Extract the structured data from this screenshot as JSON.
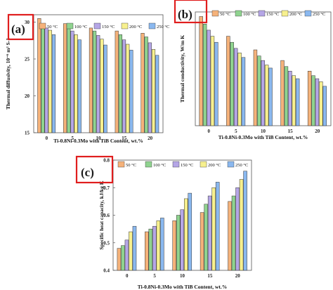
{
  "colors": {
    "series": [
      "#f5b27a",
      "#8fd38f",
      "#b5a6e6",
      "#f7f08e",
      "#8ab8ef"
    ],
    "panel_box": "#e01e1e",
    "bar_stroke": "#333333",
    "frame": "#555555"
  },
  "chart_data": [
    {
      "type": "bar",
      "label": "(a)",
      "categories": [
        "0",
        "5",
        "10",
        "15",
        "20"
      ],
      "series": [
        {
          "name": "50 °C",
          "values": [
            30.5,
            29.8,
            29.2,
            28.8,
            28.5
          ]
        },
        {
          "name": "100 °C",
          "values": [
            29.7,
            29.4,
            28.8,
            28.3,
            28.0
          ]
        },
        {
          "name": "150 °C",
          "values": [
            29.2,
            28.8,
            28.2,
            27.6,
            27.2
          ]
        },
        {
          "name": "200 °C",
          "values": [
            28.9,
            28.3,
            27.7,
            27.0,
            26.3
          ]
        },
        {
          "name": "250 °C",
          "values": [
            28.3,
            27.6,
            26.9,
            26.2,
            25.5
          ]
        }
      ],
      "xlabel": "Ti-0.8Ni-0.3Mo with TiB Content, wt.%",
      "ylabel": "Thermal diffusivity, 10⁻⁶ m² S-1",
      "ylim": [
        15,
        31
      ],
      "yticks": [
        "15",
        "20",
        "25",
        "30"
      ],
      "legend": "top-right",
      "grid": false
    },
    {
      "type": "bar",
      "label": "(b)",
      "categories": [
        "0",
        "5",
        "10",
        "15",
        "20"
      ],
      "series": [
        {
          "name": "50 °C",
          "values": [
            14.2,
            12.9,
            12.0,
            11.3,
            10.6
          ]
        },
        {
          "name": "100 °C",
          "values": [
            13.7,
            12.5,
            11.6,
            10.9,
            10.3
          ]
        },
        {
          "name": "150 °C",
          "values": [
            13.3,
            12.1,
            11.3,
            10.6,
            10.1
          ]
        },
        {
          "name": "200 °C",
          "values": [
            12.9,
            11.8,
            11.0,
            10.3,
            9.9
          ]
        },
        {
          "name": "250 °C",
          "values": [
            12.5,
            11.5,
            10.8,
            10.1,
            9.6
          ]
        }
      ],
      "xlabel": "Ti-0.8Ni-0.3Mo with TiB Content, wt.%",
      "ylabel": "Thermal conductivity, W/m K",
      "ylim": [
        7,
        14.5
      ],
      "yticks": [],
      "legend": "top-right",
      "grid": false
    },
    {
      "type": "bar",
      "label": "(c)",
      "categories": [
        "0",
        "5",
        "10",
        "15",
        "20"
      ],
      "series": [
        {
          "name": "50 °C",
          "values": [
            0.48,
            0.54,
            0.58,
            0.61,
            0.65
          ]
        },
        {
          "name": "100 °C",
          "values": [
            0.49,
            0.55,
            0.6,
            0.64,
            0.67
          ]
        },
        {
          "name": "150 °C",
          "values": [
            0.51,
            0.56,
            0.62,
            0.67,
            0.7
          ]
        },
        {
          "name": "200 °C",
          "values": [
            0.54,
            0.58,
            0.66,
            0.7,
            0.73
          ]
        },
        {
          "name": "250 °C",
          "values": [
            0.56,
            0.59,
            0.68,
            0.72,
            0.76
          ]
        }
      ],
      "xlabel": "Ti-0.8Ni-0.3Mo with TiB Content, wt.%",
      "ylabel": "Specific heat capacity, kJ/kg K",
      "ylim": [
        0.4,
        0.8
      ],
      "yticks": [
        "0.4",
        "0.5",
        "0.6",
        "0.7",
        "0.8"
      ],
      "legend": "top-left",
      "grid": false
    }
  ]
}
